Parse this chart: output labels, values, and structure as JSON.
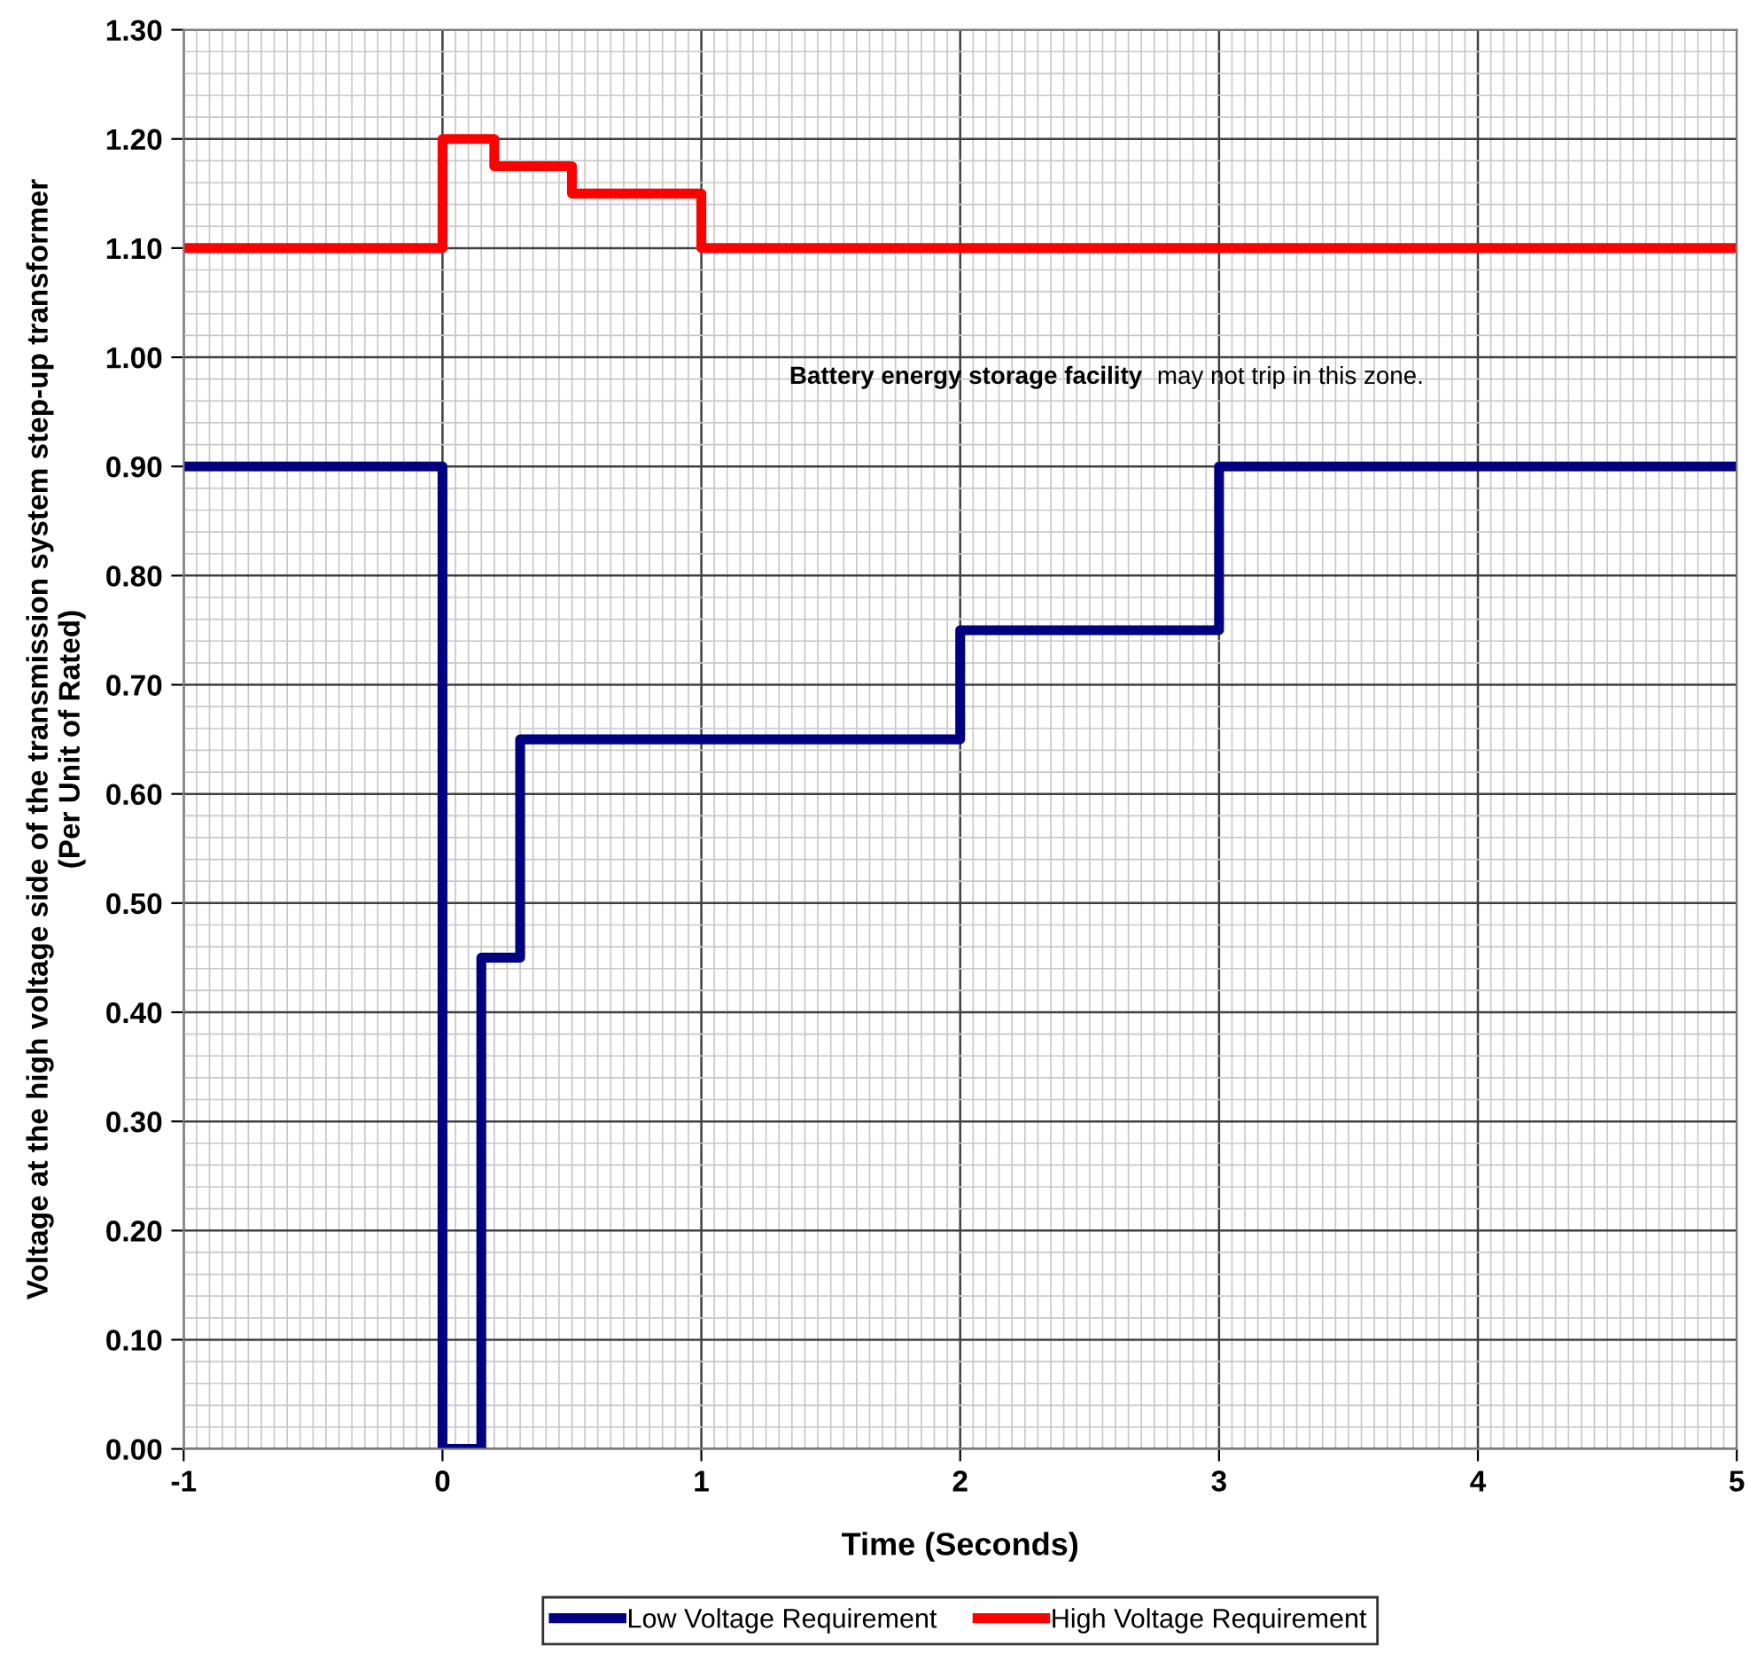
{
  "chart_data": {
    "type": "step",
    "xlabel": "Time (Seconds)",
    "ylabel": "Voltage at the high voltage side of the transmission system step-up transformer\n(Per Unit of Rated)",
    "series": [
      {
        "name": "Low Voltage Requirement",
        "color": "#000080",
        "x": [
          -1,
          0,
          0.15,
          0.3,
          2,
          3,
          5
        ],
        "values": [
          0.9,
          0,
          0.45,
          0.65,
          0.75,
          0.9,
          0.9
        ]
      },
      {
        "name": "High Voltage Requirement",
        "color": "#ff0000",
        "x": [
          -1,
          0,
          0.2,
          0.5,
          1,
          5
        ],
        "values": [
          1.1,
          1.2,
          1.175,
          1.15,
          1.1,
          1.1
        ]
      }
    ],
    "annotations": [
      "Battery energy storage facility",
      "may not trip in this zone."
    ],
    "xlim": [
      -1,
      5
    ],
    "xticks": [
      -1,
      0,
      1,
      2,
      3,
      4,
      5
    ],
    "ylim": [
      0,
      1.3
    ],
    "yticks": [
      {
        "value": 0,
        "label": "0.00"
      },
      {
        "value": 0.1,
        "label": "0.10"
      },
      {
        "value": 0.2,
        "label": "0.20"
      },
      {
        "value": 0.3,
        "label": "0.30"
      },
      {
        "value": 0.4,
        "label": "0.40"
      },
      {
        "value": 0.5,
        "label": "0.50"
      },
      {
        "value": 0.6,
        "label": "0.60"
      },
      {
        "value": 0.7,
        "label": "0.70"
      },
      {
        "value": 0.8,
        "label": "0.80"
      },
      {
        "value": 0.9,
        "label": "0.90"
      },
      {
        "value": 1.0,
        "label": "1.00"
      },
      {
        "value": 1.1,
        "label": "1.10"
      },
      {
        "value": 1.2,
        "label": "1.20"
      },
      {
        "value": 1.3,
        "label": "1.30"
      }
    ],
    "grid": true,
    "legend": "bottom",
    "marker": "none",
    "line_style": "solid"
  }
}
